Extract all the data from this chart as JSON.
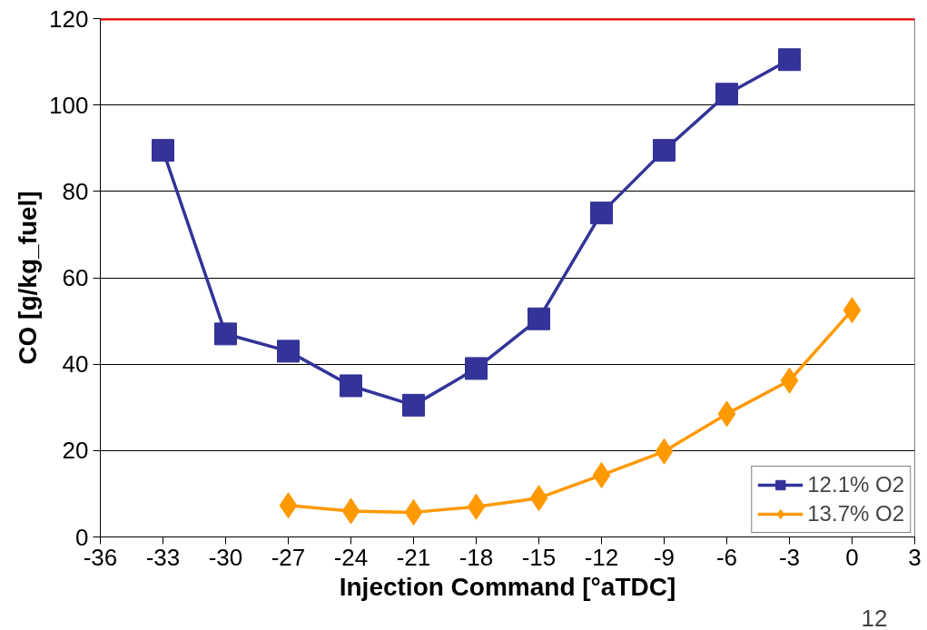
{
  "chart_data": {
    "type": "line",
    "xlabel": "Injection Command [°aTDC]",
    "ylabel": "CO [g/kg_fuel]",
    "x": [
      -33,
      -30,
      -27,
      -24,
      -21,
      -18,
      -15,
      -12,
      -9,
      -6,
      -3,
      0
    ],
    "xlim": [
      -36,
      3
    ],
    "xticks": [
      -36,
      -33,
      -30,
      -27,
      -24,
      -21,
      -18,
      -15,
      -12,
      -9,
      -6,
      -3,
      0,
      3
    ],
    "ylim": [
      0,
      120
    ],
    "yticks": [
      0,
      20,
      40,
      60,
      80,
      100,
      120
    ],
    "grid": "y",
    "legend": "bottom right",
    "line_style": "solid",
    "series": [
      {
        "name": "12.1% O2",
        "color": "#333399",
        "marker": "square",
        "values": [
          89.5,
          47,
          43,
          35,
          30.5,
          39,
          50.5,
          75,
          89.5,
          102.5,
          110.5,
          null
        ]
      },
      {
        "name": "13.7% O2",
        "color": "#ff9900",
        "marker": "diamond",
        "values": [
          null,
          null,
          7.3,
          6,
          5.7,
          7,
          9,
          14.3,
          19.8,
          28.5,
          36.2,
          52.5
        ]
      }
    ],
    "ref_lines": [
      {
        "axis": "y",
        "value": 120,
        "color": "#ff0000"
      }
    ],
    "annotations": [
      "12"
    ]
  }
}
